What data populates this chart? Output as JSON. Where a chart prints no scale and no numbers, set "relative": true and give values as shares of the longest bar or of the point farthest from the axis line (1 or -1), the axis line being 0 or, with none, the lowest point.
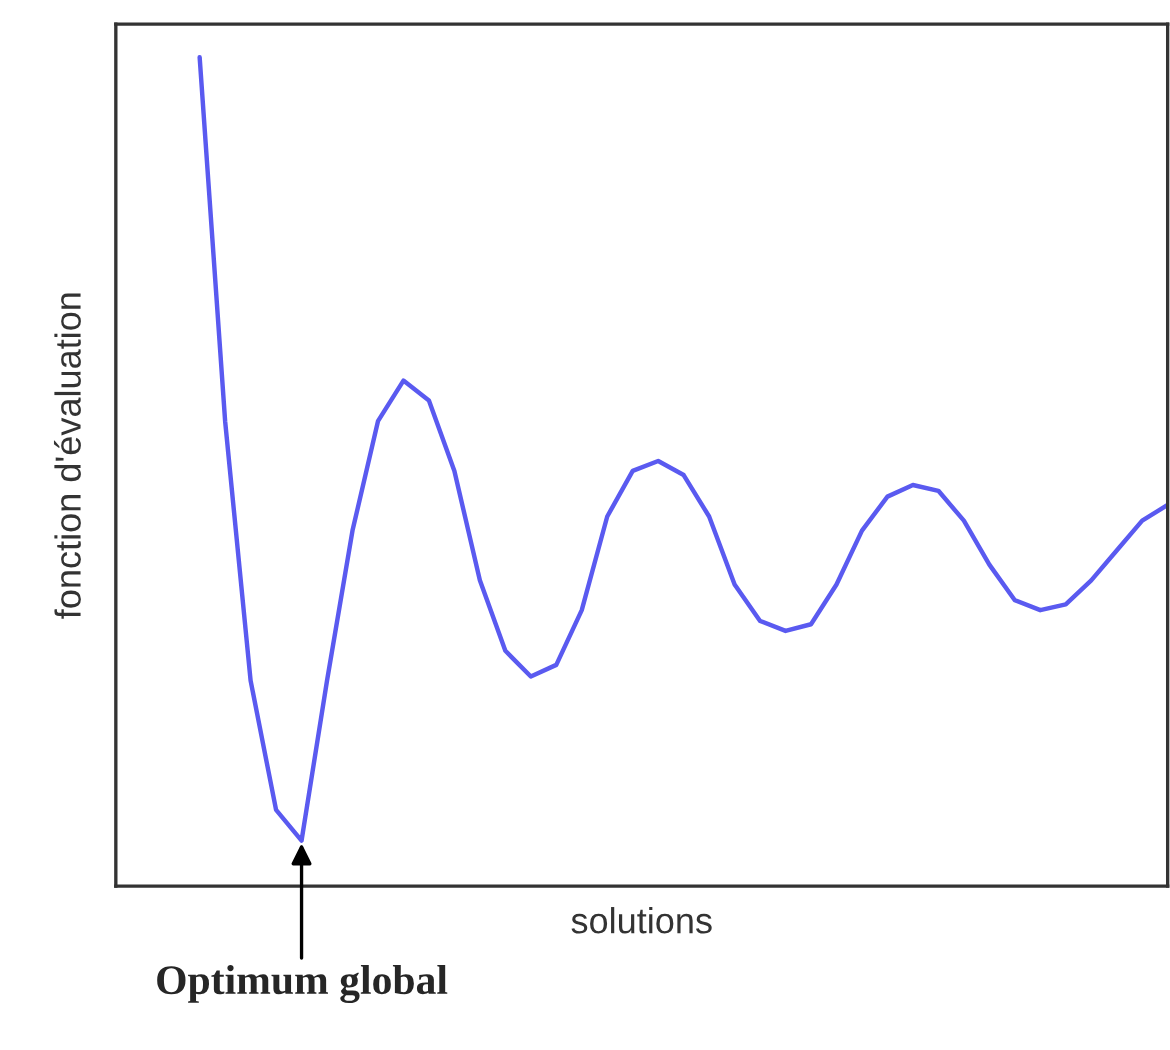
{
  "chart_data": {
    "type": "line",
    "relative": true,
    "xlabel": "solutions",
    "ylabel": "fonction d'évaluation",
    "categories": [
      null,
      null,
      null,
      null,
      null,
      null,
      null,
      null,
      null,
      null,
      null,
      null,
      null,
      null,
      null,
      null,
      null,
      null,
      null,
      null,
      null,
      null,
      null,
      null,
      null,
      null,
      null,
      null,
      null,
      null,
      null,
      null,
      null,
      null,
      null,
      null,
      null,
      null,
      null
    ],
    "series": [
      {
        "color": "#5a5af0",
        "values": [
          1.0,
          0.561,
          0.248,
          0.092,
          0.055,
          0.248,
          0.429,
          0.561,
          0.61,
          0.586,
          0.501,
          0.369,
          0.284,
          0.253,
          0.267,
          0.333,
          0.446,
          0.501,
          0.513,
          0.496,
          0.446,
          0.364,
          0.32,
          0.308,
          0.316,
          0.364,
          0.429,
          0.47,
          0.484,
          0.477,
          0.441,
          0.388,
          0.345,
          0.333,
          0.34,
          0.369,
          0.405,
          0.441,
          0.46
        ]
      }
    ],
    "annotations": [
      "Optimum global"
    ],
    "grid": false,
    "legend": false,
    "marker": "none",
    "line_style": "solid"
  }
}
